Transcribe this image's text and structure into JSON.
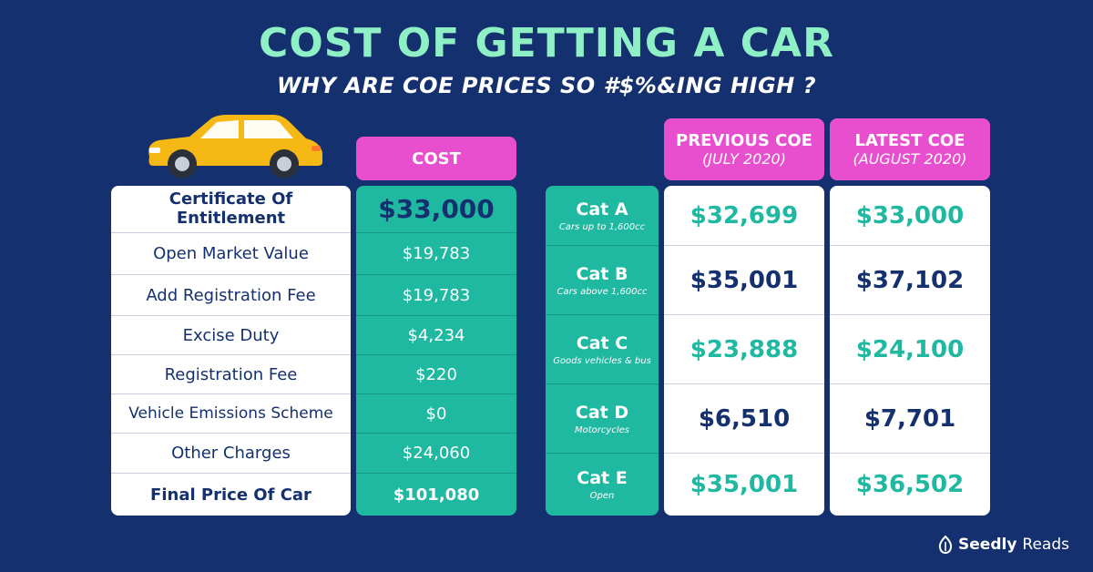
{
  "title": "COST OF GETTING A CAR",
  "subtitle": "WHY ARE COE PRICES SO #$%&ING HIGH ?",
  "car_icon": "yellow-car-illustration",
  "cost_header": "COST",
  "cost_rows": [
    {
      "label": "Certificate Of Entitlement",
      "value": "$33,000"
    },
    {
      "label": "Open Market Value",
      "value": "$19,783"
    },
    {
      "label": "Add Registration Fee",
      "value": "$19,783"
    },
    {
      "label": "Excise Duty",
      "value": "$4,234"
    },
    {
      "label": "Registration Fee",
      "value": "$220"
    },
    {
      "label": "Vehicle Emissions Scheme",
      "value": "$0"
    },
    {
      "label": "Other Charges",
      "value": "$24,060"
    },
    {
      "label": "Final Price Of Car",
      "value": "$101,080"
    }
  ],
  "coe_headers": {
    "previous": {
      "title": "PREVIOUS COE",
      "period": "(JULY 2020)"
    },
    "latest": {
      "title": "LATEST COE",
      "period": "(AUGUST 2020)"
    }
  },
  "coe_rows": [
    {
      "category": "Cat A",
      "description": "Cars up to 1,600cc",
      "previous": "$32,699",
      "latest": "$33,000"
    },
    {
      "category": "Cat B",
      "description": "Cars above 1,600cc",
      "previous": "$35,001",
      "latest": "$37,102"
    },
    {
      "category": "Cat C",
      "description": "Goods vehicles & bus",
      "previous": "$23,888",
      "latest": "$24,100"
    },
    {
      "category": "Cat D",
      "description": "Motorcycles",
      "previous": "$6,510",
      "latest": "$7,701"
    },
    {
      "category": "Cat E",
      "description": "Open",
      "previous": "$35,001",
      "latest": "$36,502"
    }
  ],
  "brand": {
    "name": "Seedly",
    "suffix": "Reads"
  },
  "colors": {
    "background": "#14306e",
    "title": "#8ef0c4",
    "pink": "#e84fcf",
    "teal": "#1fb8a1",
    "navy": "#14306e"
  }
}
